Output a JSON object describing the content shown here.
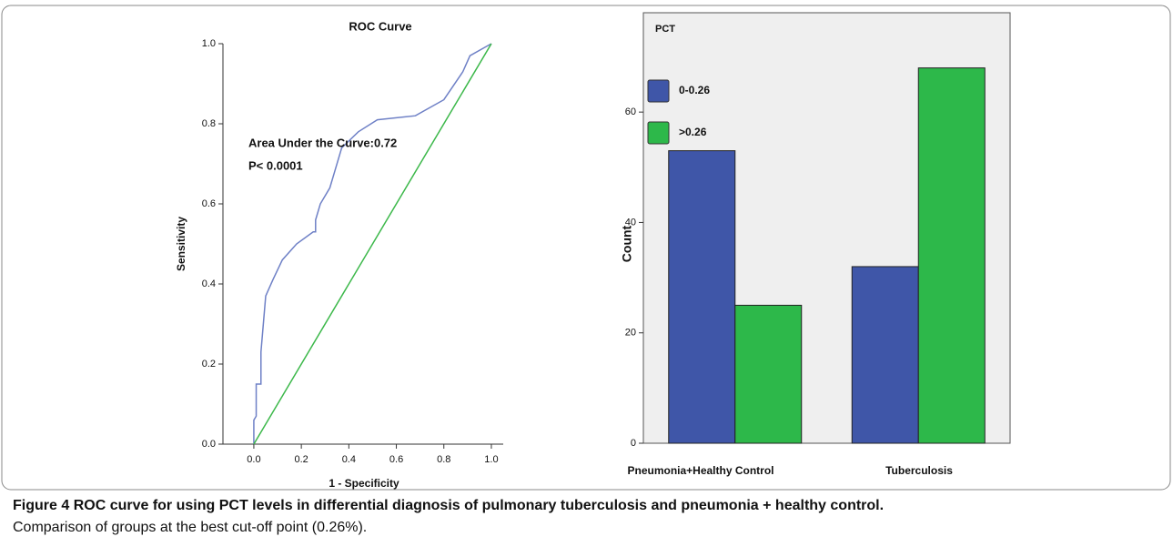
{
  "chart_data": [
    {
      "type": "line",
      "title": "ROC Curve",
      "x_label": "1 - Specificity",
      "y_label": "Sensitivity",
      "annotations": [
        "Area Under the Curve:0.72",
        "P< 0.0001"
      ],
      "series": [
        {
          "color": "#6e80c6",
          "x": [
            0,
            0,
            0.01,
            0.01,
            0.03,
            0.03,
            0.04,
            0.05,
            0.08,
            0.12,
            0.18,
            0.25,
            0.26,
            0.26,
            0.28,
            0.32,
            0.34,
            0.37,
            0.44,
            0.52,
            0.68,
            0.8,
            0.88,
            0.91,
            0.97,
            1
          ],
          "values": [
            0,
            0.06,
            0.07,
            0.15,
            0.15,
            0.23,
            0.3,
            0.37,
            0.41,
            0.46,
            0.5,
            0.53,
            0.53,
            0.56,
            0.6,
            0.64,
            0.68,
            0.74,
            0.78,
            0.81,
            0.82,
            0.86,
            0.93,
            0.97,
            0.99,
            1
          ]
        },
        {
          "color": "#3cb84a",
          "x": [
            0,
            1
          ],
          "values": [
            0,
            1
          ]
        }
      ],
      "xlim": [
        -0.13,
        1.05
      ],
      "ylim": [
        0,
        1
      ],
      "xticks": [
        {
          "value": 0,
          "label": "0.0"
        },
        {
          "value": 0.2,
          "label": "0.2"
        },
        {
          "value": 0.4,
          "label": "0.4"
        },
        {
          "value": 0.6,
          "label": "0.6"
        },
        {
          "value": 0.8,
          "label": "0.8"
        },
        {
          "value": 1,
          "label": "1.0"
        }
      ],
      "yticks": [
        {
          "value": 0,
          "label": "0.0"
        },
        {
          "value": 0.2,
          "label": "0.2"
        },
        {
          "value": 0.4,
          "label": "0.4"
        },
        {
          "value": 0.6,
          "label": "0.6"
        },
        {
          "value": 0.8,
          "label": "0.8"
        },
        {
          "value": 1,
          "label": "1.0"
        }
      ]
    },
    {
      "type": "bar",
      "y_label": "Count",
      "legend_title": "PCT",
      "legend": "upper left",
      "categories": [
        "Pneumonia+Healthy Control",
        "Tuberculosis"
      ],
      "series": [
        {
          "name": "0-0.26",
          "color": "#3f56a8",
          "values": [
            53,
            32
          ]
        },
        {
          "name": ">0.26",
          "color": "#2db84a",
          "values": [
            25,
            68
          ]
        }
      ],
      "ylim": [
        0,
        78
      ],
      "yticks": [
        0,
        20,
        40,
        60
      ]
    }
  ],
  "caption": {
    "label": "Figure 4",
    "title": "ROC curve for using PCT levels in differential diagnosis of pulmonary tuberculosis and pneumonia + healthy control.",
    "text": "Comparison of groups at the best cut-off point (0.26%)."
  }
}
